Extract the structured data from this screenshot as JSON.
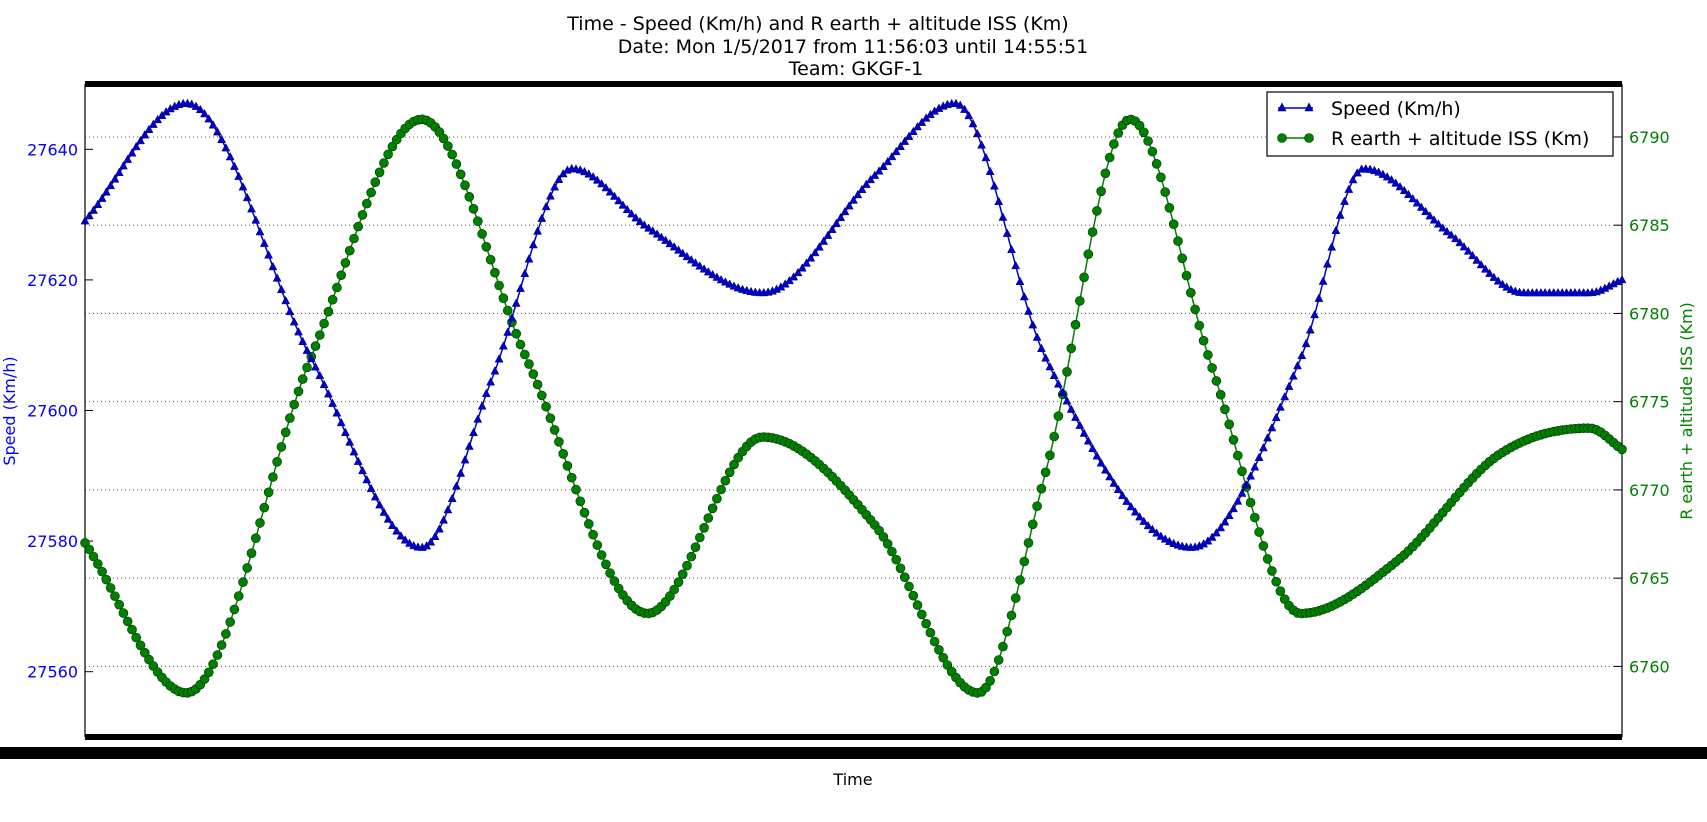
{
  "chart_data": {
    "type": "line",
    "title": "Time - Speed (Km/h) and R earth + altitude ISS (Km)",
    "subtitle_lines": [
      "Date: Mon 1/5/2017 from 11:56:03 until 14:55:51",
      "Team: GKGF-1"
    ],
    "xlabel": "Time",
    "ylabel_left": "Speed (Km/h)",
    "ylabel_right": "R earth + altitude ISS (Km)",
    "ylim_left": [
      27550,
      27650
    ],
    "ylim_right": [
      6756,
      6793
    ],
    "yticks_left": [
      "27560",
      "27580",
      "27600",
      "27620",
      "27640"
    ],
    "yticks_right": [
      "6760",
      "6765",
      "6770",
      "6775",
      "6780",
      "6785",
      "6790"
    ],
    "grid": "horizontal dotted (right axis)",
    "legend_position": "top-right",
    "x_note": "x tick labels overlapped and illegible; x given as fraction of time span 0..1",
    "series": [
      {
        "name": "Speed (Km/h)",
        "axis": "left",
        "color": "#0000cc",
        "marker": "triangle",
        "x": [
          0.0,
          0.066,
          0.147,
          0.219,
          0.265,
          0.317,
          0.366,
          0.441,
          0.514,
          0.566,
          0.625,
          0.72,
          0.791,
          0.832,
          0.888,
          0.936,
          0.979,
          1.0
        ],
        "y": [
          27629,
          27647,
          27608,
          27579,
          27605,
          27637,
          27628,
          27618,
          27636,
          27647,
          27608,
          27579,
          27608,
          27637,
          27627,
          27618,
          27618,
          27620
        ]
      },
      {
        "name": "R earth + altitude ISS (Km)",
        "axis": "right",
        "color": "#008000",
        "marker": "circle",
        "x": [
          0.0,
          0.066,
          0.147,
          0.219,
          0.287,
          0.366,
          0.441,
          0.514,
          0.581,
          0.625,
          0.68,
          0.733,
          0.791,
          0.854,
          0.92,
          0.979,
          1.0
        ],
        "y": [
          6767.0,
          6758.5,
          6777.5,
          6791.0,
          6777.5,
          6763.0,
          6773.0,
          6768.0,
          6758.5,
          6771.0,
          6791.0,
          6777.0,
          6763.0,
          6766.0,
          6772.0,
          6773.5,
          6772.3
        ]
      }
    ]
  },
  "colors": {
    "speed": "#0000cc",
    "altitude": "#008000",
    "left_axis_text": "#0000ff",
    "right_axis_text": "#008000"
  }
}
